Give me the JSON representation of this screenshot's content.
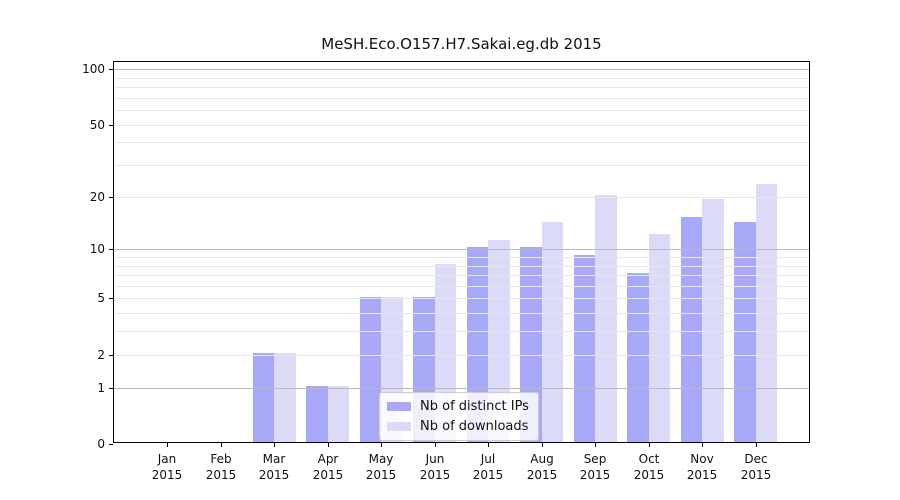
{
  "chart_data": {
    "type": "bar",
    "title": "MeSH.Eco.O157.H7.Sakai.eg.db 2015",
    "categories": [
      "Jan 2015",
      "Feb 2015",
      "Mar 2015",
      "Apr 2015",
      "May 2015",
      "Jun 2015",
      "Jul 2015",
      "Aug 2015",
      "Sep 2015",
      "Oct 2015",
      "Nov 2015",
      "Dec 2015"
    ],
    "series": [
      {
        "name": "Nb of distinct IPs",
        "color": "#a8a8f8",
        "values": [
          0,
          0,
          2,
          1,
          5,
          5,
          10,
          10,
          9,
          7,
          15,
          14
        ]
      },
      {
        "name": "Nb of downloads",
        "color": "#dbdbf8",
        "values": [
          0,
          0,
          2,
          1,
          5,
          8,
          11,
          14,
          20,
          12,
          19,
          23
        ]
      }
    ],
    "xlabel": "",
    "ylabel": "",
    "y_scale": "log1p",
    "ylim": [
      0,
      110
    ],
    "y_ticks": [
      0,
      1,
      2,
      5,
      10,
      20,
      50,
      100
    ],
    "y_major_gridlines": [
      1,
      10,
      100
    ],
    "y_minor_gridlines": [
      2,
      3,
      4,
      5,
      6,
      7,
      8,
      9,
      20,
      30,
      40,
      50,
      60,
      70,
      80,
      90
    ],
    "grid": true,
    "legend_position": "lower center",
    "colors": {
      "major_grid": "#bababa",
      "minor_grid": "#e8e8e8",
      "axis": "#000000",
      "background": "#ffffff",
      "text": "#111111"
    }
  }
}
